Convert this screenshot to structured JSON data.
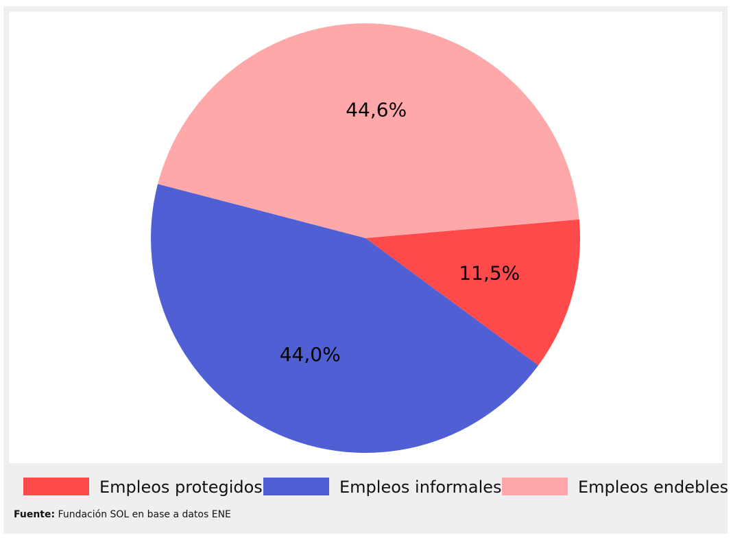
{
  "chart_data": {
    "type": "pie",
    "slices": [
      {
        "name": "Empleos protegidos",
        "value": 11.5,
        "label": "11,5%",
        "color": "#ff4a4c"
      },
      {
        "name": "Empleos informales",
        "value": 44.0,
        "label": "44,0%",
        "color": "#5060d4"
      },
      {
        "name": "Empleos endebles",
        "value": 44.6,
        "label": "44,6%",
        "color": "#ffa8aa"
      }
    ],
    "legend_position": "bottom",
    "start_angle_deg": 5,
    "direction": "clockwise"
  },
  "legend": {
    "items": [
      {
        "label": "Empleos protegidos",
        "color": "#ff4a4c"
      },
      {
        "label": "Empleos informales",
        "color": "#5060d4"
      },
      {
        "label": "Empleos endebles",
        "color": "#ffa8aa"
      }
    ]
  },
  "source": {
    "prefix": "Fuente:",
    "text": "Fundación SOL en base a datos ENE"
  }
}
